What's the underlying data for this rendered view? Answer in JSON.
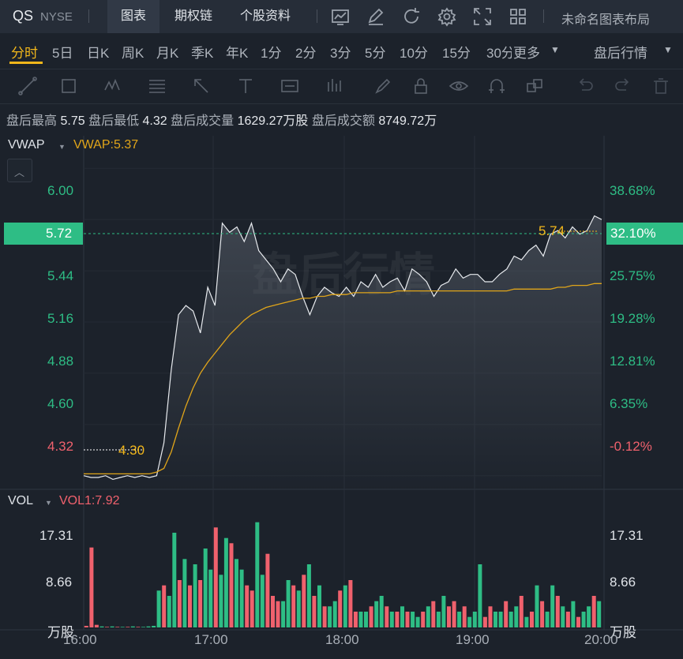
{
  "header": {
    "symbol": "QS",
    "exchange": "NYSE",
    "tabs": [
      {
        "label": "图表",
        "active": true
      },
      {
        "label": "期权链",
        "active": false
      },
      {
        "label": "个股资料",
        "active": false
      }
    ],
    "toolbar_icons": [
      "chart-icon",
      "edit-icon",
      "refresh-icon",
      "gear-icon",
      "fullscreen-icon",
      "grid-icon"
    ],
    "layout_name": "未命名图表布局"
  },
  "periods": {
    "items": [
      "分时",
      "5日",
      "日K",
      "周K",
      "月K",
      "季K",
      "年K",
      "1分",
      "2分",
      "3分",
      "5分",
      "10分",
      "15分",
      "30分"
    ],
    "active": "分时",
    "more_label": "更多",
    "session_label": "盘后行情"
  },
  "drawing_tools": [
    "trendline-icon",
    "rectangle-icon",
    "pattern-icon",
    "fib-icon",
    "arrow-icon",
    "measure-icon",
    "text-icon",
    "bars-icon",
    "brush-icon",
    "lock-icon",
    "eye-icon",
    "magnet-icon",
    "layers-icon",
    "undo-icon",
    "redo-icon",
    "trash-icon"
  ],
  "stats": {
    "high_label": "盘后最高",
    "high_value": "5.75",
    "low_label": "盘后最低",
    "low_value": "4.32",
    "volume_label": "盘后成交量",
    "volume_value": "1629.27万股",
    "amount_label": "盘后成交额",
    "amount_value": "8749.72万"
  },
  "price_panel": {
    "indicator": "VWAP",
    "indicator_value": "VWAP:5.37",
    "watermark": "盘后行情",
    "current_price": "5.72",
    "current_pct": "32.10%",
    "max_label": "5.74",
    "min_label": "4.30",
    "y_left": [
      "6.00",
      "5.44",
      "5.16",
      "4.88",
      "4.60",
      "4.32"
    ],
    "y_right": [
      "38.68%",
      "25.75%",
      "19.28%",
      "12.81%",
      "6.35%",
      "-0.12%"
    ]
  },
  "volume_panel": {
    "indicator": "VOL",
    "indicator_value": "VOL1:7.92",
    "y_left": [
      "17.31",
      "8.66",
      "万股"
    ],
    "y_right": [
      "17.31",
      "8.66",
      "万股"
    ]
  },
  "x_axis": [
    "16:00",
    "17:00",
    "18:00",
    "19:00",
    "20:00"
  ],
  "colors": {
    "up": "#2ebd85",
    "down": "#f0616d",
    "accent": "#f2b71b",
    "price_line": "#e8ebef",
    "vwap": "#e0a51a",
    "background": "#1c222b"
  },
  "chart_data": [
    {
      "type": "line",
      "series": [
        {
          "name": "VWAP",
          "values": [
            4.33,
            4.33,
            4.33,
            4.33,
            4.33,
            4.33,
            4.33,
            4.33,
            4.33,
            4.33,
            4.34,
            4.36,
            4.45,
            4.58,
            4.7,
            4.8,
            4.88,
            4.94,
            4.99,
            5.04,
            5.09,
            5.13,
            5.17,
            5.2,
            5.22,
            5.24,
            5.25,
            5.26,
            5.27,
            5.28,
            5.29,
            5.29,
            5.3,
            5.3,
            5.31,
            5.31,
            5.31,
            5.32,
            5.32,
            5.32,
            5.32,
            5.32,
            5.32,
            5.33,
            5.33,
            5.33,
            5.33,
            5.33,
            5.33,
            5.33,
            5.33,
            5.33,
            5.33,
            5.33,
            5.33,
            5.33,
            5.33,
            5.33,
            5.33,
            5.34,
            5.34,
            5.34,
            5.34,
            5.34,
            5.34,
            5.35,
            5.35,
            5.36,
            5.36,
            5.36,
            5.37,
            5.37
          ]
        }
      ],
      "price_series": [
        4.32,
        4.31,
        4.31,
        4.32,
        4.3,
        4.31,
        4.32,
        4.31,
        4.32,
        4.31,
        4.32,
        4.5,
        4.9,
        5.2,
        5.25,
        5.22,
        5.1,
        5.35,
        5.25,
        5.7,
        5.65,
        5.68,
        5.6,
        5.7,
        5.55,
        5.5,
        5.45,
        5.38,
        5.45,
        5.42,
        5.3,
        5.2,
        5.3,
        5.35,
        5.32,
        5.3,
        5.35,
        5.3,
        5.38,
        5.35,
        5.42,
        5.35,
        5.38,
        5.4,
        5.33,
        5.45,
        5.42,
        5.38,
        5.3,
        5.36,
        5.38,
        5.45,
        5.4,
        5.42,
        5.42,
        5.38,
        5.38,
        5.42,
        5.45,
        5.52,
        5.5,
        5.55,
        5.58,
        5.52,
        5.64,
        5.66,
        5.62,
        5.68,
        5.64,
        5.66,
        5.74,
        5.72
      ],
      "xlabel": "",
      "ylabel": "",
      "ylim": [
        4.28,
        6.04
      ],
      "x_ticks": [
        "16:00",
        "17:00",
        "18:00",
        "19:00",
        "20:00"
      ]
    },
    {
      "type": "bar",
      "series": [
        {
          "name": "VOL",
          "values": [
            0.3,
            15.2,
            0.5,
            0.2,
            0.1,
            0.2,
            0.1,
            0.1,
            0.1,
            0.2,
            0.1,
            0.1,
            0.2,
            0.3,
            7,
            8,
            6,
            18,
            9,
            13,
            8,
            12,
            9,
            15,
            11,
            19,
            10,
            17,
            16,
            13,
            11,
            8,
            7,
            20,
            10,
            14,
            6,
            5,
            5,
            9,
            8,
            7,
            10,
            12,
            6,
            8,
            4,
            4,
            5,
            7,
            8,
            9,
            3,
            3,
            3,
            4,
            5,
            6,
            4,
            3,
            3,
            4,
            3,
            3,
            2,
            3,
            4,
            5,
            3,
            6,
            4,
            5,
            3,
            4,
            2,
            3,
            12,
            2,
            4,
            3,
            3,
            5,
            3,
            4,
            6,
            2,
            3,
            8,
            5,
            3,
            8,
            6,
            4,
            3,
            5,
            2,
            3,
            4,
            6,
            5
          ]
        }
      ],
      "up_mask": [
        0,
        0,
        0,
        1,
        0,
        1,
        0,
        1,
        0,
        1,
        0,
        1,
        1,
        1,
        1,
        0,
        1,
        1,
        0,
        1,
        0,
        1,
        0,
        1,
        1,
        0,
        1,
        1,
        0,
        1,
        1,
        0,
        0,
        1,
        1,
        0,
        0,
        0,
        1,
        1,
        0,
        1,
        0,
        1,
        0,
        1,
        0,
        1,
        1,
        0,
        1,
        0,
        0,
        1,
        1,
        0,
        1,
        1,
        0,
        1,
        0,
        1,
        0,
        1,
        1,
        0,
        1,
        0,
        1,
        1,
        0,
        0,
        1,
        0,
        1,
        1,
        1,
        0,
        0,
        1,
        1,
        0,
        1,
        1,
        0,
        1,
        0,
        1,
        0,
        1,
        1,
        0,
        1,
        0,
        1,
        0,
        1,
        1,
        0,
        1
      ],
      "ylim": [
        0,
        21
      ]
    }
  ]
}
